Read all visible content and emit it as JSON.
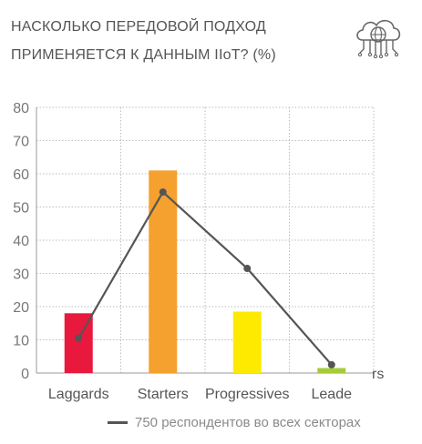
{
  "header": {
    "title_line1": "НАСКОЛЬКО ПЕРЕДОВОЙ ПОДХОД",
    "title_line2": "ПРИМЕНЯЕТСЯ К ДАННЫМ IIoT? (%)",
    "icon": "cloud-network-icon"
  },
  "chart_data": {
    "type": "bar",
    "categories": [
      "Laggards",
      "Starters",
      "Progressives",
      "Leaders"
    ],
    "category_tick_labels": [
      "Laggards",
      "Starters",
      "Progressives",
      "Leade"
    ],
    "overflow_label_fragment": "rs",
    "bar_values": [
      18,
      61,
      18.5,
      1.5
    ],
    "bar_colors": [
      "#e8193d",
      "#f4a12f",
      "#fdea00",
      "#a6cc39"
    ],
    "series": [
      {
        "name": "750 респондентов во всех секторах",
        "type": "line",
        "color": "#555555",
        "values": [
          10.5,
          54.5,
          31.5,
          2.5
        ]
      }
    ],
    "ylim": [
      0,
      80
    ],
    "yticks": [
      0,
      10,
      20,
      30,
      40,
      50,
      60,
      70,
      80
    ],
    "grid": "dotted",
    "legend_position": "bottom"
  }
}
